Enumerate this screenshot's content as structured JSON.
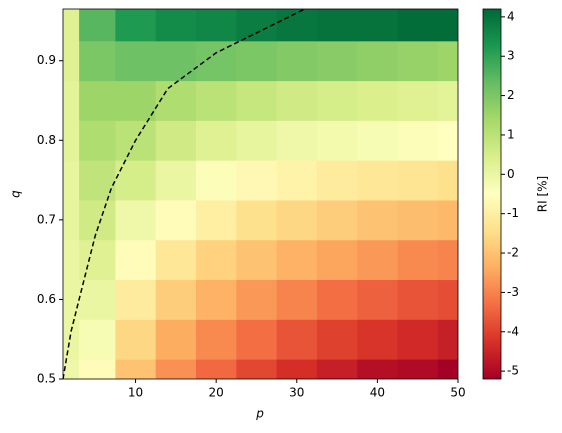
{
  "chart_data": {
    "type": "contour",
    "x": [
      1,
      5,
      10,
      15,
      20,
      25,
      30,
      35,
      40,
      45,
      50
    ],
    "y": [
      0.5,
      0.55,
      0.6,
      0.65,
      0.7,
      0.75,
      0.8,
      0.85,
      0.9,
      0.95
    ],
    "z": [
      [
        -0.1,
        -0.6,
        -2.0,
        -2.8,
        -3.4,
        -3.9,
        -4.3,
        -4.6,
        -4.9,
        -5.0,
        -5.2
      ],
      [
        0.0,
        -0.3,
        -1.6,
        -2.4,
        -2.9,
        -3.3,
        -3.7,
        -4.0,
        -4.2,
        -4.4,
        -4.6
      ],
      [
        0.0,
        0.0,
        -1.1,
        -1.8,
        -2.3,
        -2.7,
        -3.0,
        -3.3,
        -3.5,
        -3.7,
        -3.8
      ],
      [
        0.0,
        0.3,
        -0.6,
        -1.2,
        -1.7,
        -2.0,
        -2.3,
        -2.5,
        -2.7,
        -2.9,
        -3.0
      ],
      [
        0.1,
        0.6,
        -0.1,
        -0.6,
        -1.0,
        -1.4,
        -1.6,
        -1.8,
        -2.0,
        -2.1,
        -2.2
      ],
      [
        0.1,
        0.9,
        0.5,
        0.0,
        -0.4,
        -0.7,
        -0.9,
        -1.1,
        -1.2,
        -1.3,
        -1.4
      ],
      [
        0.2,
        1.2,
        1.0,
        0.6,
        0.3,
        0.1,
        -0.1,
        -0.2,
        -0.3,
        -0.4,
        -0.5
      ],
      [
        0.2,
        1.5,
        1.5,
        1.2,
        1.0,
        0.8,
        0.6,
        0.5,
        0.4,
        0.3,
        0.2
      ],
      [
        0.3,
        2.0,
        2.2,
        2.2,
        2.1,
        2.0,
        1.9,
        1.8,
        1.7,
        1.6,
        1.5
      ],
      [
        0.3,
        2.5,
        3.2,
        3.5,
        3.6,
        3.8,
        3.9,
        4.0,
        4.0,
        4.1,
        4.1
      ]
    ],
    "colorscale": [
      "#a50026",
      "#d73027",
      "#f46d43",
      "#fdae61",
      "#fee08b",
      "#ffffbf",
      "#d9ef8b",
      "#a6d96a",
      "#66bd63",
      "#1a9850",
      "#006837"
    ],
    "zlim": [
      -5.2,
      4.2
    ],
    "zticks": [
      -5,
      -4,
      -3,
      -2,
      -1,
      0,
      1,
      2,
      3,
      4
    ],
    "colorbar_label": "RI [%]",
    "line": {
      "x": [
        1,
        2,
        3,
        5,
        7,
        10,
        14,
        20,
        25,
        31
      ],
      "y": [
        0.5,
        0.56,
        0.6,
        0.68,
        0.74,
        0.8,
        0.865,
        0.91,
        0.935,
        0.965
      ],
      "color": "#000000"
    },
    "xlabel": "p",
    "ylabel": "q",
    "xlim": [
      1,
      50
    ],
    "ylim": [
      0.5,
      0.965
    ],
    "xticks": [
      10,
      20,
      30,
      40,
      50
    ],
    "yticks": [
      0.5,
      0.6,
      0.7,
      0.8,
      0.9
    ]
  }
}
